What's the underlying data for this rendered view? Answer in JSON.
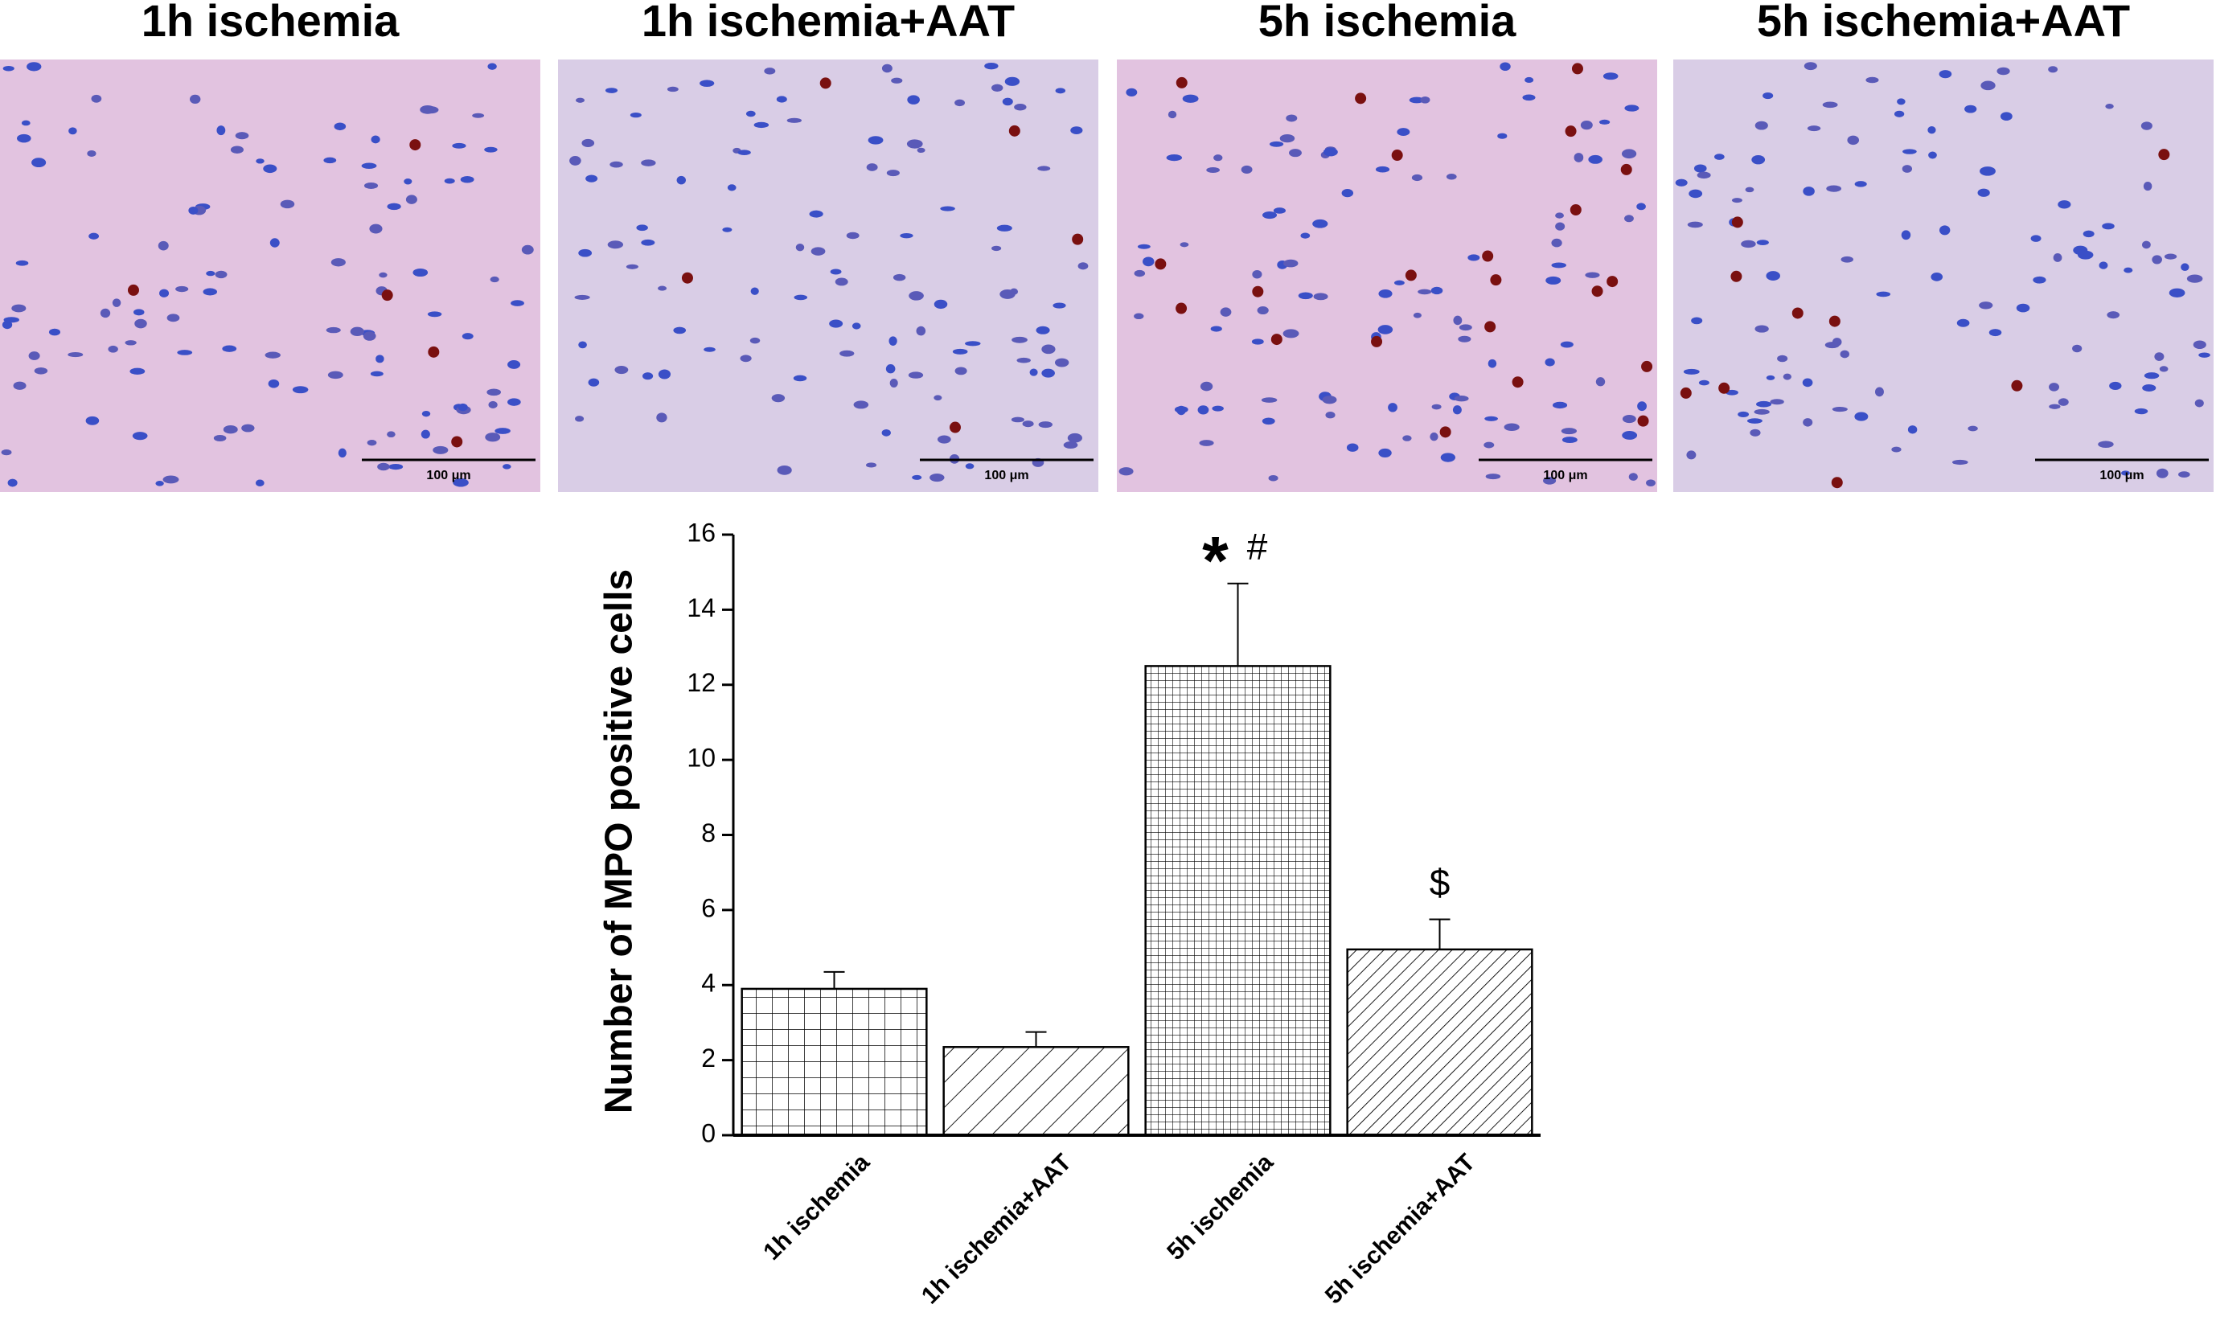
{
  "panels": [
    {
      "title": "1h ischemia",
      "scale_label": "100 μm"
    },
    {
      "title": "1h ischemia+AAT",
      "scale_label": "100 μm"
    },
    {
      "title": "5h ischemia",
      "scale_label": "100 μm"
    },
    {
      "title": "5h ischemia+AAT",
      "scale_label": "100 μm"
    }
  ],
  "chart_data": {
    "type": "bar",
    "y_label": "Number of MPO positive cells",
    "categories": [
      "1h ischemia",
      "1h ischemia+AAT",
      "5h ischemia",
      "5h ischemia+AAT"
    ],
    "values": [
      3.9,
      2.35,
      12.5,
      4.95
    ],
    "errors": [
      0.45,
      0.4,
      2.2,
      0.8
    ],
    "hatches": [
      "grid",
      "diagonal",
      "fine-grid",
      "dense-diagonal"
    ],
    "color": "#000000",
    "annotations": [
      null,
      null,
      [
        "*",
        "#"
      ],
      [
        "$"
      ]
    ],
    "ylim": [
      0,
      16
    ],
    "yticks": [
      0,
      2,
      4,
      6,
      8,
      10,
      12,
      14,
      16
    ]
  }
}
